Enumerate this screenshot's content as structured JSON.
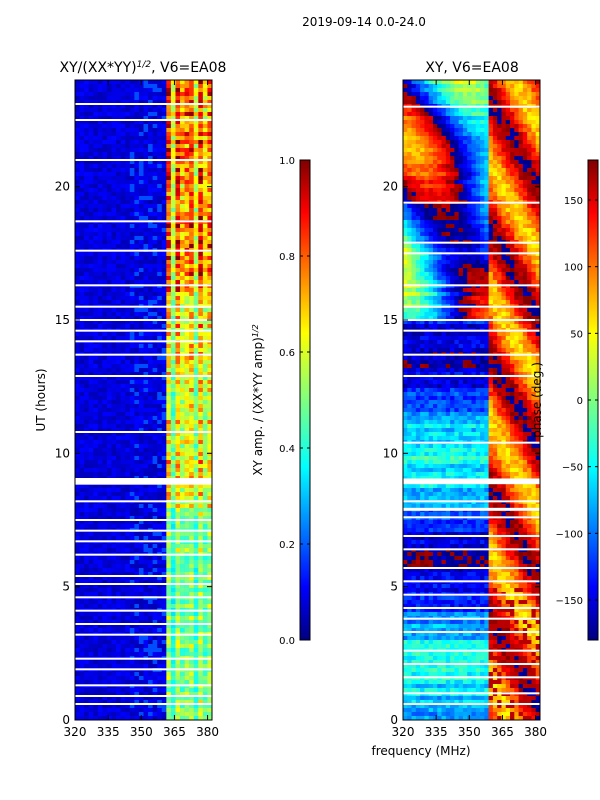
{
  "figure": {
    "suptitle": "2019-09-14 0.0-24.0",
    "xlabel_shared": "frequency (MHz)"
  },
  "colors": {
    "jet": [
      "#00007f",
      "#0000ff",
      "#007fff",
      "#00ffff",
      "#7fff7f",
      "#ffff00",
      "#ff7f00",
      "#ff0000",
      "#7f0000"
    ]
  },
  "chart_data": [
    {
      "type": "heatmap",
      "title_main": "XY/(XX*YY)",
      "title_sup": "1/2",
      "title_tail": ", V6=EA08",
      "xlabel": "",
      "ylabel": "UT (hours)",
      "xlim": [
        320,
        382
      ],
      "ylim": [
        0,
        24
      ],
      "xticks": [
        320,
        335,
        350,
        365,
        380
      ],
      "yticks": [
        0,
        5,
        10,
        15,
        20
      ],
      "colorbar": {
        "label_main": "XY amp. / (XX*YY amp)",
        "label_sup": "1/2",
        "range": [
          0.0,
          1.0
        ],
        "ticks": [
          "0.0",
          "0.2",
          "0.4",
          "0.6",
          "0.8",
          "1.0"
        ],
        "tick_values": [
          0.0,
          0.2,
          0.4,
          0.6,
          0.8,
          1.0
        ]
      },
      "description_values": {
        "low_band_level": 0.08,
        "high_band_level_min": 0.3,
        "high_band_level_max": 1.0,
        "high_band_start_mhz": 361
      }
    },
    {
      "type": "heatmap",
      "title_main": "XY, V6=EA08",
      "xlabel": "",
      "ylabel": "",
      "xlim": [
        320,
        382
      ],
      "ylim": [
        0,
        24
      ],
      "xticks": [
        320,
        335,
        350,
        365,
        380
      ],
      "yticks": [
        0,
        5,
        10,
        15,
        20
      ],
      "colorbar": {
        "label_main": "phase (deg.)",
        "range": [
          -180,
          180
        ],
        "ticks": [
          "150",
          "100",
          "50",
          "0",
          "−50",
          "−100",
          "−150"
        ],
        "tick_values": [
          150,
          100,
          50,
          0,
          -50,
          -100,
          -150
        ]
      }
    }
  ]
}
